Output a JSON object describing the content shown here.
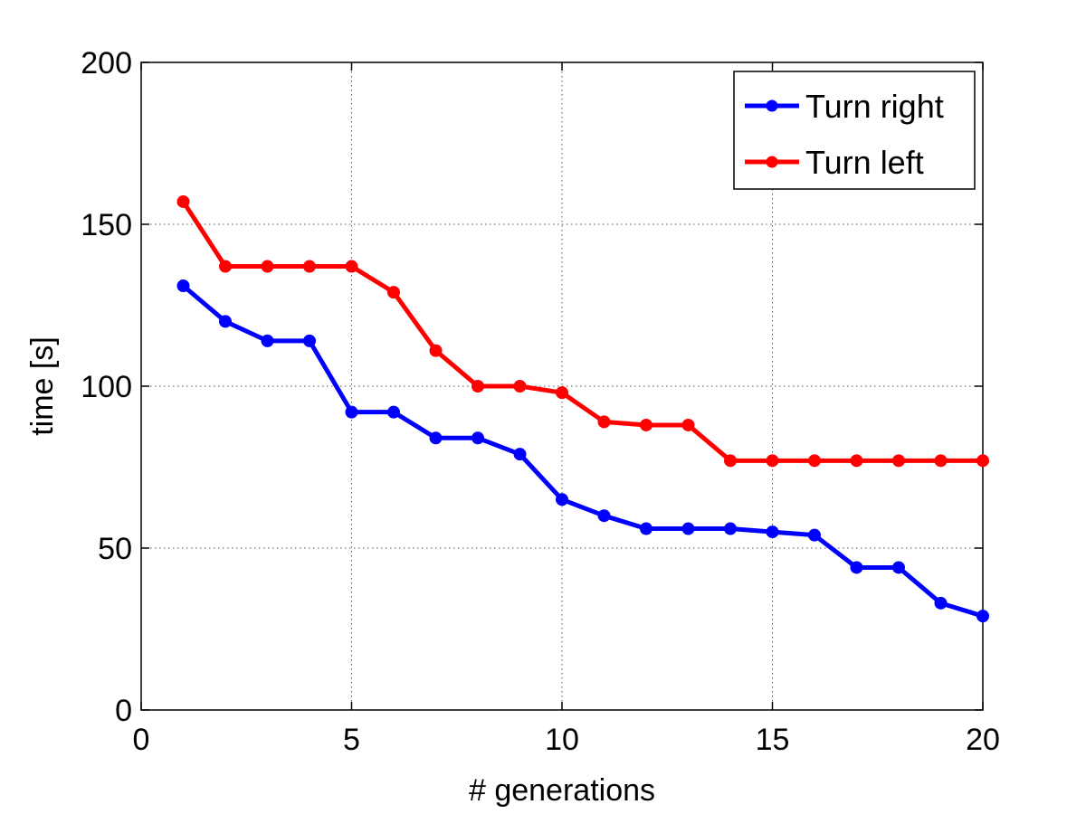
{
  "chart_data": {
    "type": "line",
    "title": "",
    "xlabel": "# generations",
    "ylabel": "time [s]",
    "xlim": [
      0,
      20
    ],
    "ylim": [
      0,
      200
    ],
    "xticks": [
      0,
      5,
      10,
      15,
      20
    ],
    "yticks": [
      0,
      50,
      100,
      150,
      200
    ],
    "grid": true,
    "legend_position": "top-right",
    "x": [
      1,
      2,
      3,
      4,
      5,
      6,
      7,
      8,
      9,
      10,
      11,
      12,
      13,
      14,
      15,
      16,
      17,
      18,
      19,
      20
    ],
    "series": [
      {
        "name": "Turn right",
        "color": "#0000ff",
        "values": [
          131,
          120,
          114,
          114,
          92,
          92,
          84,
          84,
          79,
          65,
          60,
          56,
          56,
          56,
          55,
          54,
          44,
          44,
          33,
          29
        ]
      },
      {
        "name": "Turn left",
        "color": "#ff0000",
        "values": [
          157,
          137,
          137,
          137,
          137,
          129,
          111,
          100,
          100,
          98,
          89,
          88,
          88,
          77,
          77,
          77,
          77,
          77,
          77,
          77
        ]
      }
    ]
  }
}
